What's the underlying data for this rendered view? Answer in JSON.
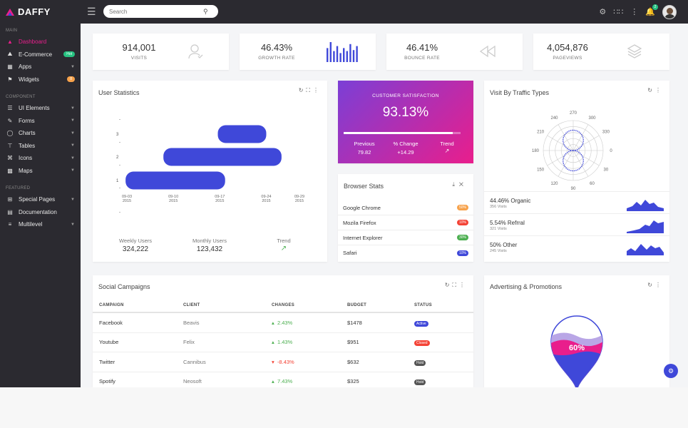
{
  "app": {
    "brand": "DAFFY"
  },
  "search": {
    "placeholder": "Search"
  },
  "sidebar": {
    "sections": [
      "MAIN",
      "COMPONENT",
      "FEATURED"
    ],
    "main_items": [
      {
        "label": "Dashboard",
        "icon": "dashboard-icon"
      },
      {
        "label": "E-Commerce",
        "icon": "basket-icon",
        "badge": "Hot"
      },
      {
        "label": "Apps",
        "icon": "apps-icon"
      },
      {
        "label": "Widgets",
        "icon": "flag-icon",
        "badge": "8"
      }
    ],
    "component_items": [
      {
        "label": "UI Elements"
      },
      {
        "label": "Forms"
      },
      {
        "label": "Charts"
      },
      {
        "label": "Tables"
      },
      {
        "label": "Icons"
      },
      {
        "label": "Maps"
      }
    ],
    "featured_items": [
      {
        "label": "Special Pages"
      },
      {
        "label": "Documentation"
      },
      {
        "label": "Multilevel"
      }
    ]
  },
  "topbar": {
    "notification_count": "2"
  },
  "stats": [
    {
      "value": "914,001",
      "label": "VISITS"
    },
    {
      "value": "46.43%",
      "label": "GROWTH RATE"
    },
    {
      "value": "46.41%",
      "label": "BOUNCE RATE"
    },
    {
      "value": "4,054,876",
      "label": "PAGEVIEWS"
    }
  ],
  "growth_bars": [
    0.7,
    1.0,
    0.55,
    0.8,
    0.45,
    0.7,
    0.55,
    0.9,
    0.6,
    0.8
  ],
  "user_stats": {
    "title": "User Statistics",
    "footer": [
      {
        "label": "Weekly Users",
        "value": "324,222"
      },
      {
        "label": "Monthly Users",
        "value": "123,432"
      },
      {
        "label": "Trend",
        "value": ""
      }
    ]
  },
  "chart_data": {
    "type": "bar",
    "orientation": "horizontal-range",
    "title": "User Statistics",
    "y_ticks": [
      "1",
      "2",
      "3"
    ],
    "x_ticks": [
      {
        "date": "09-03",
        "year": "2015"
      },
      {
        "date": "09-10",
        "year": "2015"
      },
      {
        "date": "09-17",
        "year": "2015"
      },
      {
        "date": "09-24",
        "year": "2015"
      },
      {
        "date": "09-29",
        "year": "2015"
      }
    ],
    "x_range_days": [
      0,
      26
    ],
    "bars": [
      {
        "row": 3,
        "start_day": 13.7,
        "end_day": 21.0
      },
      {
        "row": 2,
        "start_day": 5.5,
        "end_day": 23.3
      },
      {
        "row": 1,
        "start_day": -0.2,
        "end_day": 14.8
      }
    ]
  },
  "satisfaction": {
    "title": "CUSTOMER SATISFACTION",
    "value": "93.13%",
    "progress": 0.93,
    "cols": [
      {
        "label": "Previous",
        "value": "79.82"
      },
      {
        "label": "% Change",
        "value": "+14.29"
      },
      {
        "label": "Trend",
        "value": ""
      }
    ]
  },
  "browser": {
    "title": "Browser Stats",
    "rows": [
      {
        "name": "Google Chrome",
        "pct": "50%",
        "color": "#f7a24b"
      },
      {
        "name": "Mozila Firefox",
        "pct": "10%",
        "color": "#f44336"
      },
      {
        "name": "Internet Explorer",
        "pct": "30%",
        "color": "#4caf50"
      },
      {
        "name": "Safari",
        "pct": "10%",
        "color": "#3f48d9"
      }
    ]
  },
  "traffic": {
    "title": "Visit By Traffic Types",
    "angle_labels": [
      "270",
      "300",
      "330",
      "0",
      "30",
      "60",
      "90",
      "120",
      "150",
      "180",
      "210",
      "240"
    ],
    "rows": [
      {
        "value": "44.46% Organic",
        "sub": "356 Visits"
      },
      {
        "value": "5.54% Refrral",
        "sub": "321 Visits"
      },
      {
        "value": "50% Other",
        "sub": "245 Visits"
      }
    ]
  },
  "campaigns": {
    "title": "Social Campaigns",
    "headers": [
      "CAMPAIGN",
      "CLIENT",
      "CHANGES",
      "BUDGET",
      "STATUS"
    ],
    "rows": [
      {
        "campaign": "Facebook",
        "client": "Beavis",
        "dir": "up",
        "change": "2.43%",
        "budget": "$1478",
        "status": "Active",
        "color": "#3f48d9"
      },
      {
        "campaign": "Youtube",
        "client": "Felix",
        "dir": "up",
        "change": "1.43%",
        "budget": "$951",
        "status": "Closed",
        "color": "#f44336"
      },
      {
        "campaign": "Twitter",
        "client": "Cannibus",
        "dir": "down",
        "change": "-8.43%",
        "budget": "$632",
        "status": "Hold",
        "color": "#555"
      },
      {
        "campaign": "Spotify",
        "client": "Neosoft",
        "dir": "up",
        "change": "7.43%",
        "budget": "$325",
        "status": "Hold",
        "color": "#555"
      }
    ]
  },
  "advertising": {
    "title": "Advertising & Promotions",
    "value": "60%"
  },
  "colors": {
    "accent": "#3f48d9",
    "pink": "#e91e8c",
    "purple": "#7b3fd6"
  }
}
